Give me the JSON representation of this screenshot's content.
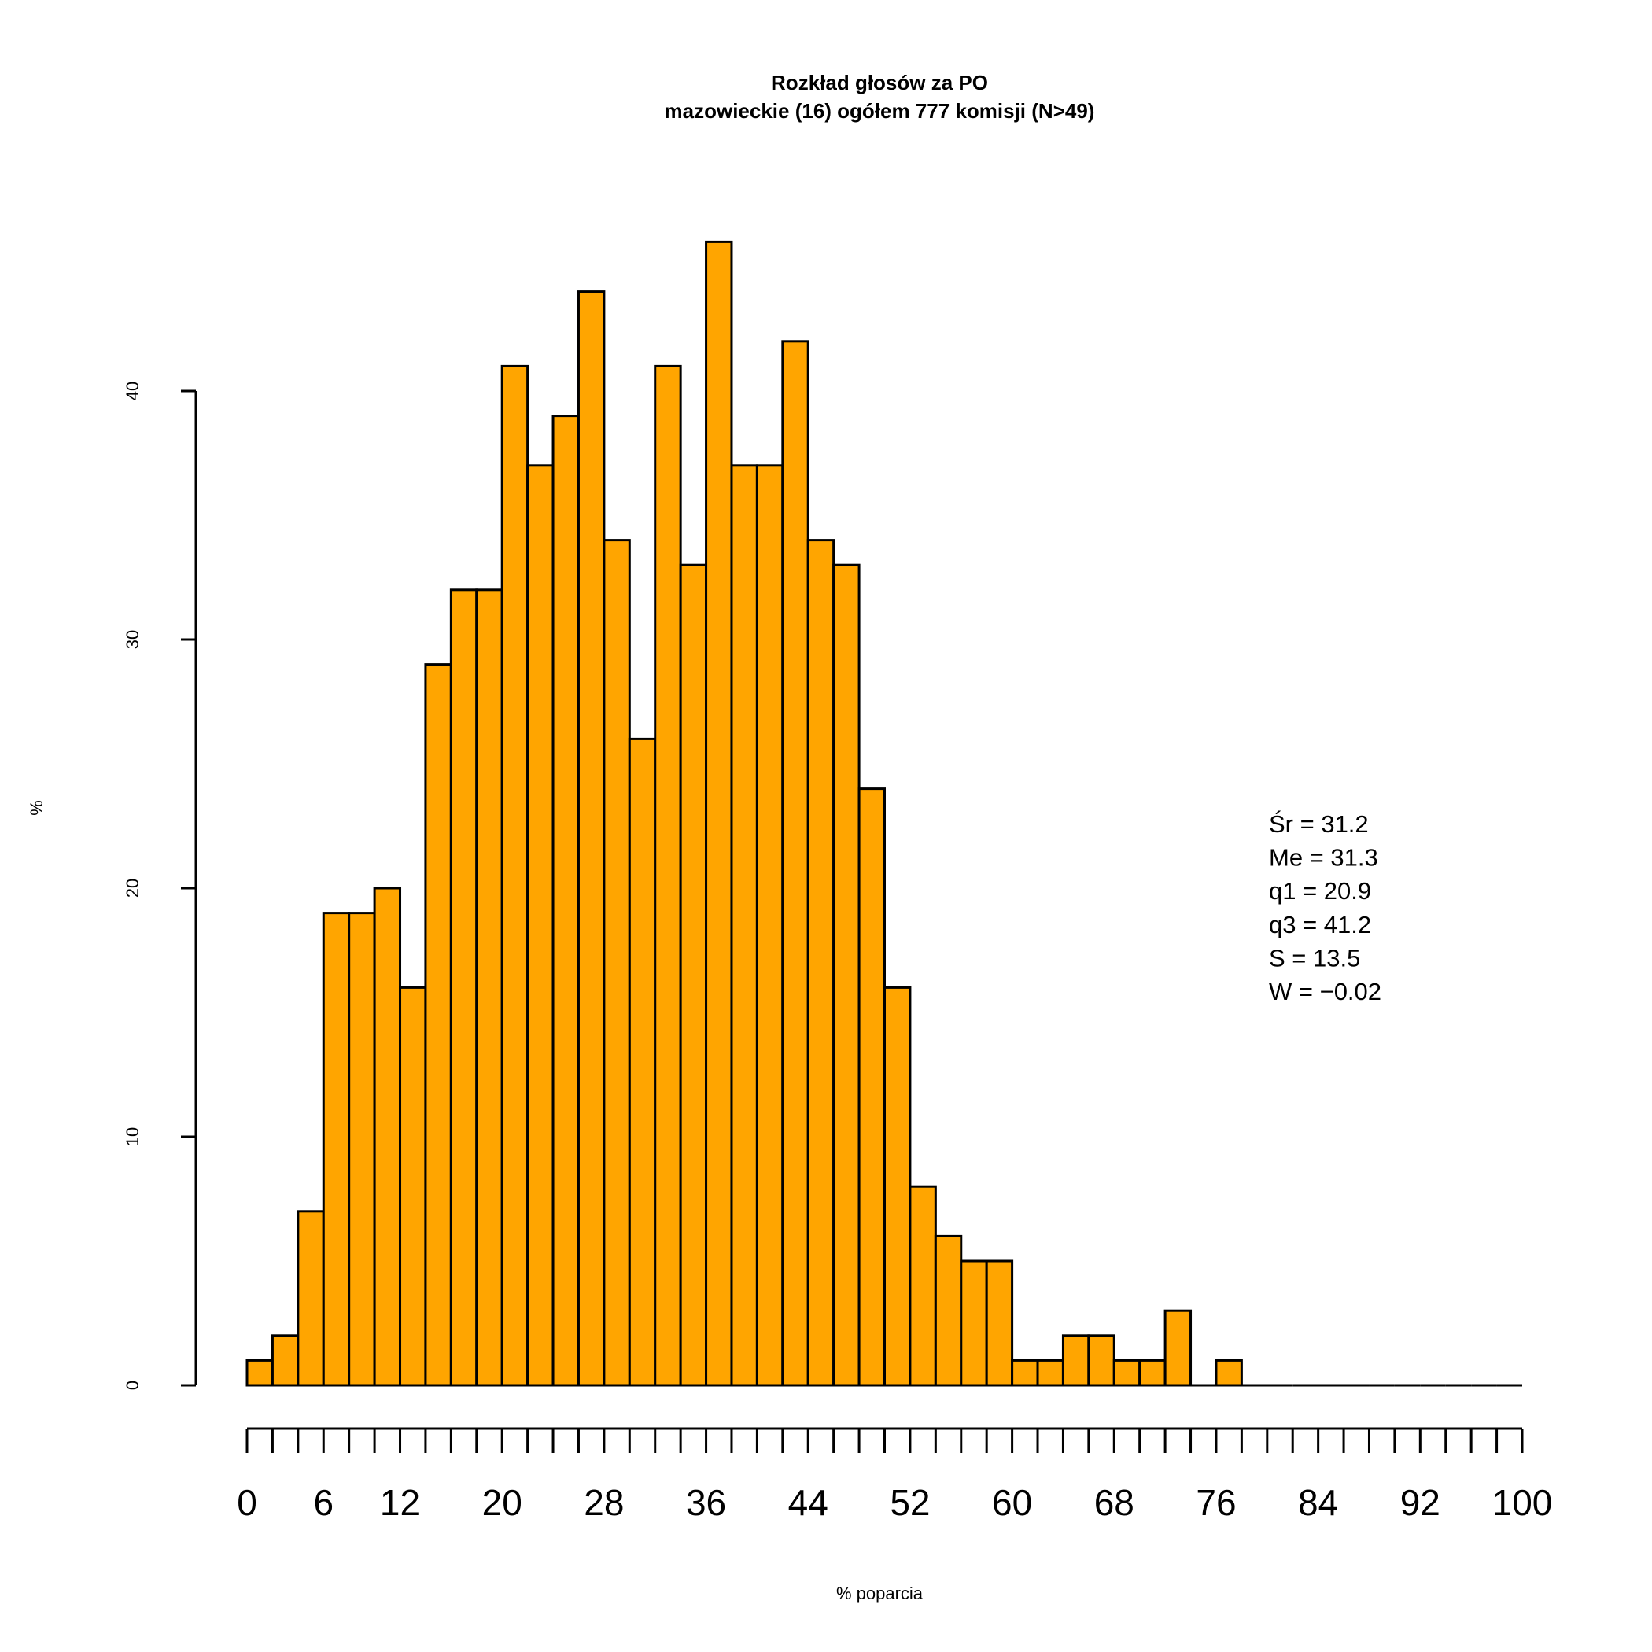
{
  "chart_data": {
    "type": "bar",
    "title": "Rozkład głosów za PO",
    "subtitle": "mazowieckie (16) ogółem 777 komisji (N>49)",
    "xlabel": "% poparcia",
    "ylabel": "%",
    "bin_width": 2,
    "xlim": [
      0,
      100
    ],
    "ylim": [
      0,
      40
    ],
    "yticks": [
      0,
      10,
      20,
      30,
      40
    ],
    "xtick_labels": [
      0,
      6,
      12,
      20,
      28,
      36,
      44,
      52,
      60,
      68,
      76,
      84,
      92,
      100
    ],
    "bin_starts": [
      0,
      2,
      4,
      6,
      8,
      10,
      12,
      14,
      16,
      18,
      20,
      22,
      24,
      26,
      28,
      30,
      32,
      34,
      36,
      38,
      40,
      42,
      44,
      46,
      48,
      50,
      52,
      54,
      56,
      58,
      60,
      62,
      64,
      66,
      68,
      70,
      72,
      74,
      76,
      78,
      80,
      82,
      84,
      86,
      88,
      90,
      92,
      94,
      96,
      98
    ],
    "values": [
      1,
      2,
      7,
      19,
      19,
      20,
      16,
      29,
      32,
      32,
      41,
      37,
      39,
      44,
      34,
      26,
      41,
      33,
      46,
      37,
      37,
      42,
      34,
      33,
      24,
      16,
      8,
      6,
      5,
      5,
      1,
      1,
      2,
      2,
      1,
      1,
      3,
      0,
      1,
      0,
      0,
      0,
      0,
      0,
      0,
      0,
      0,
      0,
      0,
      0
    ],
    "bar_color": "#FFA500",
    "stats": [
      "Śr = 31.2",
      "Me = 31.3",
      "q1 = 20.9",
      "q3 = 41.2",
      "S = 13.5",
      "W = −0.02"
    ]
  }
}
